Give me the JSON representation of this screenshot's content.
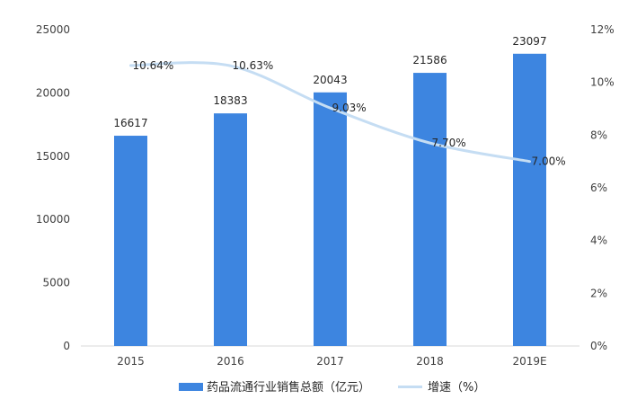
{
  "chart_data": {
    "type": "bar",
    "title": "",
    "categories": [
      "2015",
      "2016",
      "2017",
      "2018",
      "2019E"
    ],
    "series": [
      {
        "name": "药品流通行业销售总额（亿元）",
        "type": "bar",
        "axis": "left",
        "color": "#3d85e0",
        "values": [
          16617,
          18383,
          20043,
          21586,
          23097
        ],
        "labels": [
          "16617",
          "18383",
          "20043",
          "21586",
          "23097"
        ]
      },
      {
        "name": "增速（%）",
        "type": "line",
        "axis": "right",
        "color": "#c5ddf3",
        "values": [
          10.64,
          10.63,
          9.03,
          7.7,
          7.0
        ],
        "labels": [
          "10.64%",
          "10.63%",
          "9.03%",
          "7.70%",
          "7.00%"
        ]
      }
    ],
    "y_left": {
      "min": 0,
      "max": 25000,
      "ticks": [
        "0",
        "5000",
        "10000",
        "15000",
        "20000",
        "25000"
      ]
    },
    "y_right": {
      "min": 0,
      "max": 12,
      "ticks": [
        "0%",
        "2%",
        "4%",
        "6%",
        "8%",
        "10%",
        "12%"
      ]
    },
    "grid": false,
    "legend_position": "bottom"
  }
}
